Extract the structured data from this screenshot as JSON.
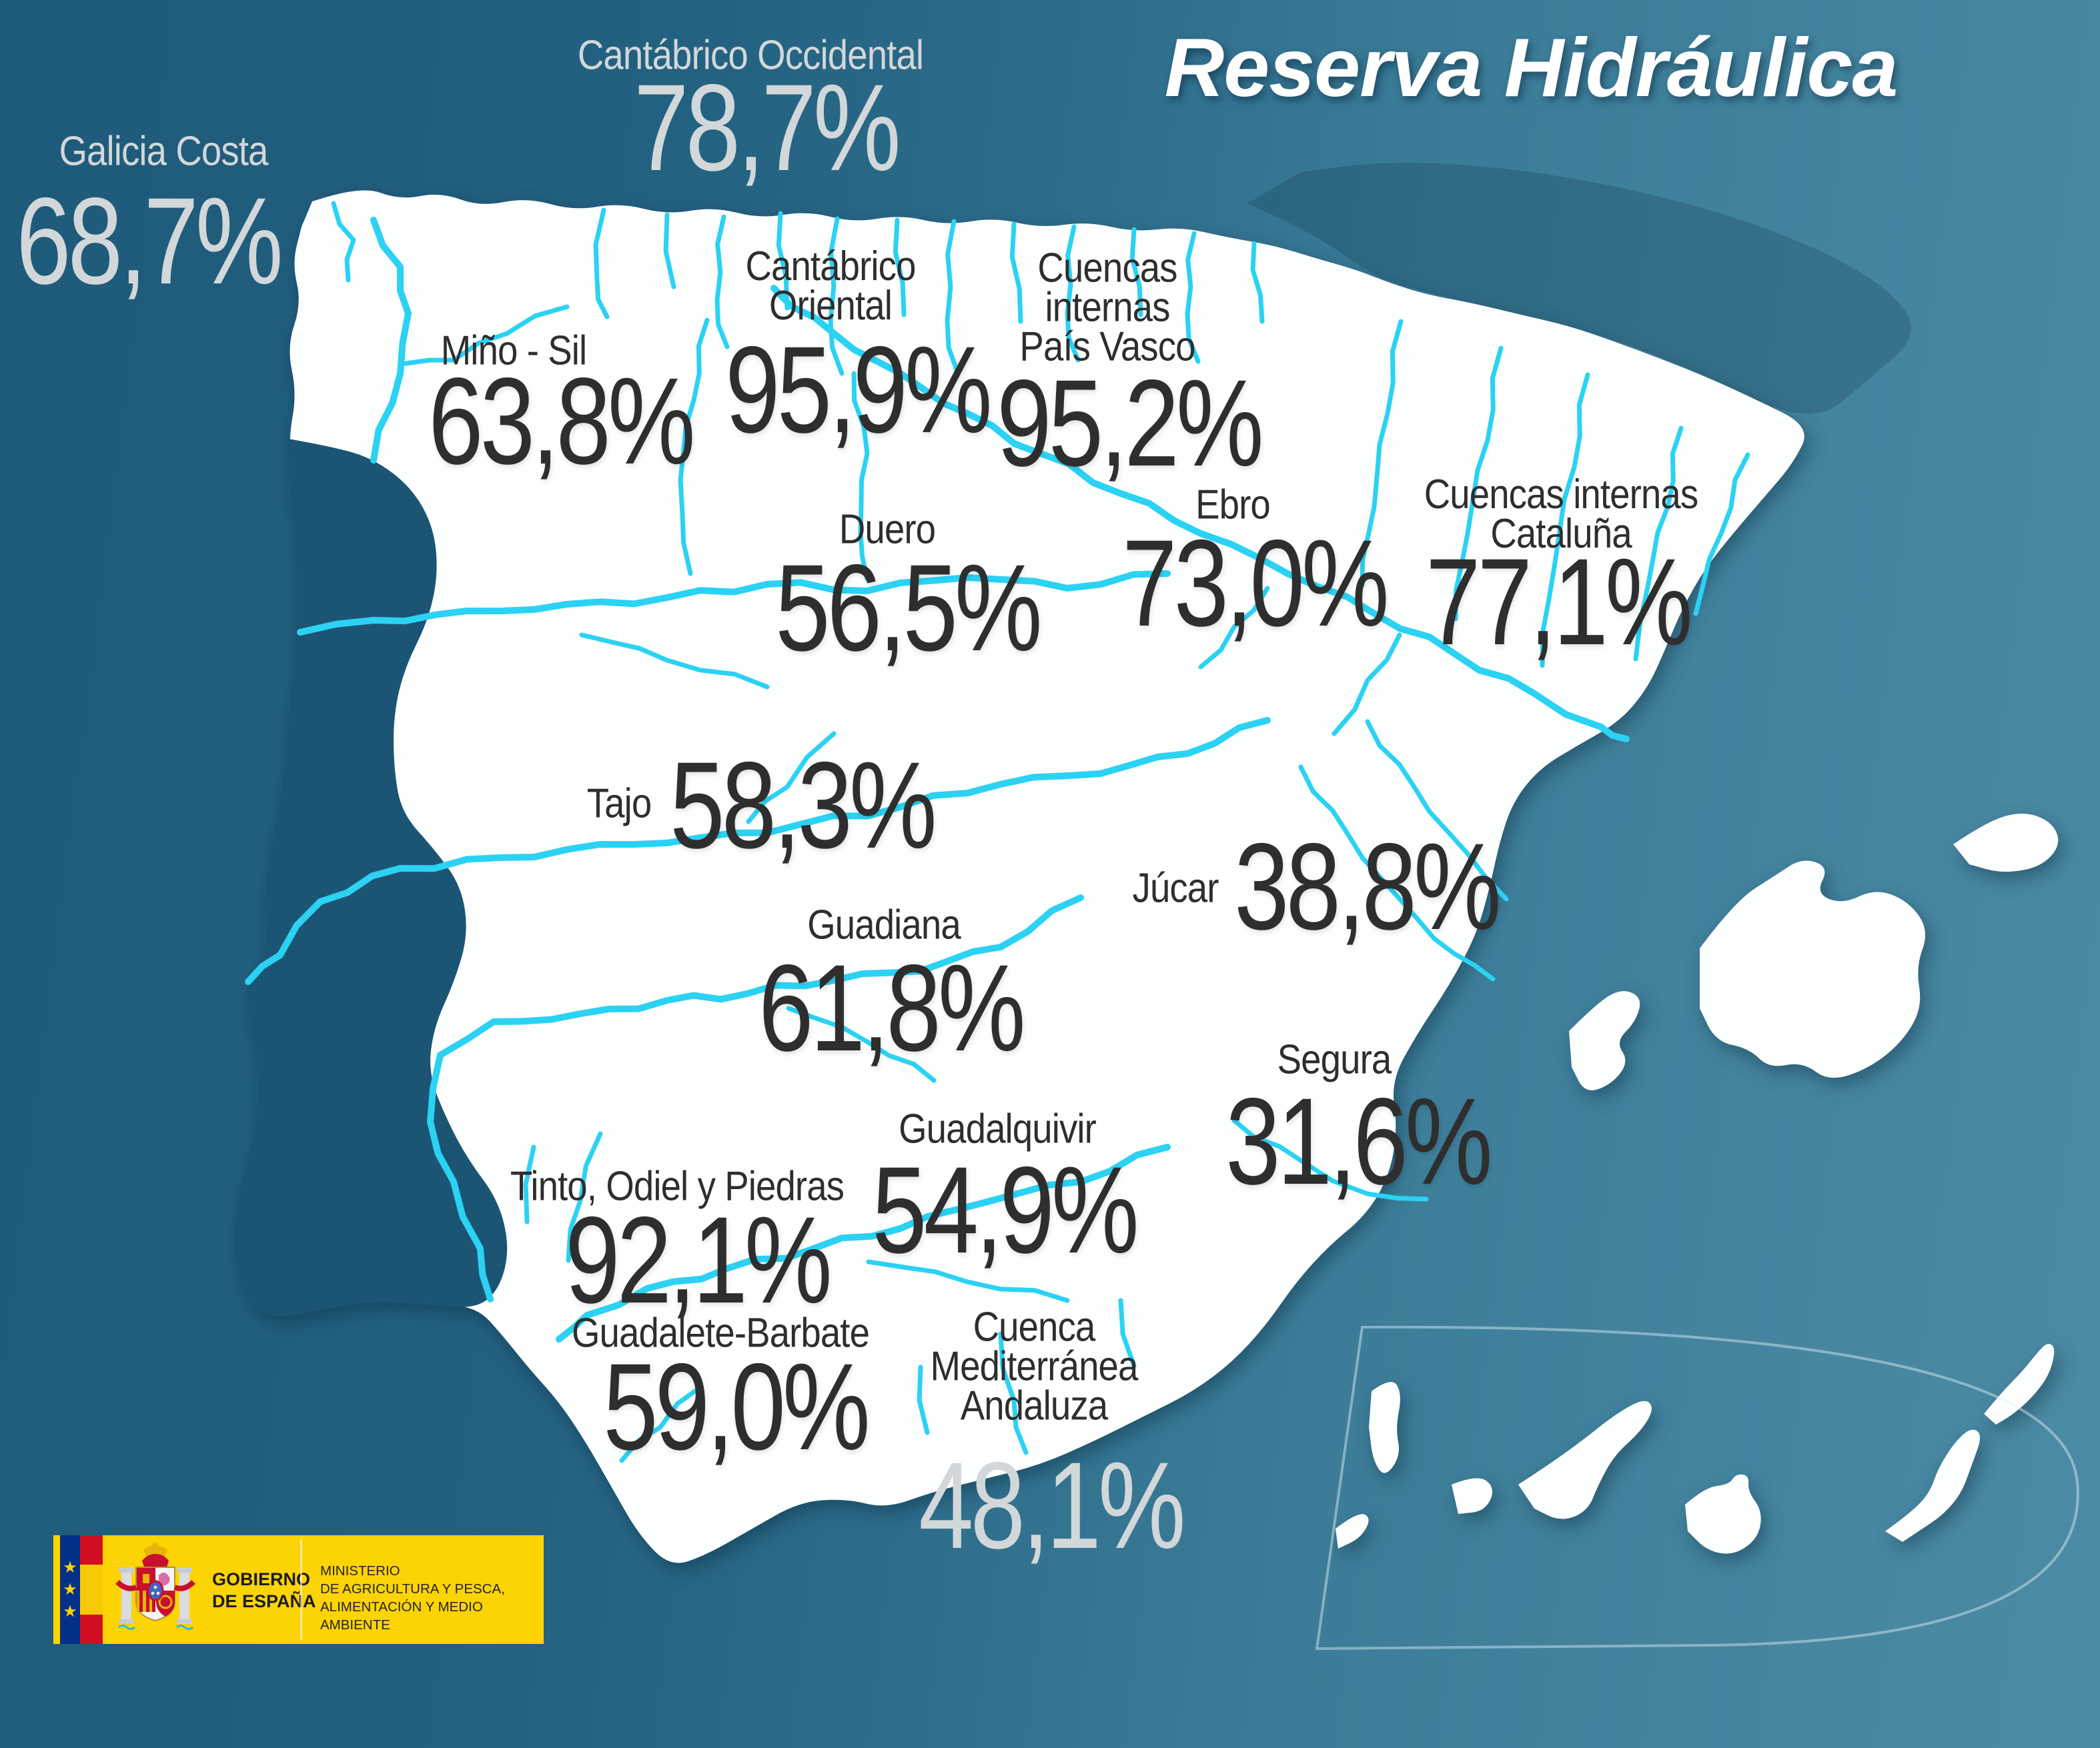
{
  "title": "Reserva Hidráulica",
  "basins": [
    {
      "id": "galicia-costa",
      "name": "Galicia Costa",
      "value": "68,7%"
    },
    {
      "id": "cantabrico-occidental",
      "name": "Cantábrico Occidental",
      "value": "78,7%"
    },
    {
      "id": "cantabrico-oriental",
      "name": "Cantábrico\nOriental",
      "value": "95,9%"
    },
    {
      "id": "cuencas-internas-pais-vasco",
      "name": "Cuencas\ninternas\nPaís Vasco",
      "value": "95,2%"
    },
    {
      "id": "mino-sil",
      "name": "Miño - Sil",
      "value": "63,8%"
    },
    {
      "id": "duero",
      "name": "Duero",
      "value": "56,5%"
    },
    {
      "id": "ebro",
      "name": "Ebro",
      "value": "73,0%"
    },
    {
      "id": "cuencas-internas-cataluna",
      "name": "Cuencas internas\nCataluña",
      "value": "77,1%"
    },
    {
      "id": "tajo",
      "name": "Tajo",
      "value": "58,3%"
    },
    {
      "id": "jucar",
      "name": "Júcar",
      "value": "38,8%"
    },
    {
      "id": "guadiana",
      "name": "Guadiana",
      "value": "61,8%"
    },
    {
      "id": "segura",
      "name": "Segura",
      "value": "31,6%"
    },
    {
      "id": "guadalquivir",
      "name": "Guadalquivir",
      "value": "54,9%"
    },
    {
      "id": "tinto-odiel-piedras",
      "name": "Tinto, Odiel y Piedras",
      "value": "92,1%"
    },
    {
      "id": "guadalete-barbate",
      "name": "Guadalete-Barbate",
      "value": "59,0%"
    },
    {
      "id": "cuenca-mediterranea-andaluza",
      "name": "Cuenca\nMediterránea\nAndaluza",
      "value": "48,1%"
    }
  ],
  "logo": {
    "government": "GOBIERNO\nDE ESPAÑA",
    "ministry": "MINISTERIO\nDE AGRICULTURA Y PESCA,\nALIMENTACIÓN Y MEDIO AMBIENTE"
  },
  "colors": {
    "background_left": "#1e5a7a",
    "background_right": "#4c8ba5",
    "land": "#fdfefe",
    "portugal": "#1c5574",
    "river": "#2bd2f3",
    "text_dark": "#2e2e2e",
    "text_light": "#d2d7d9",
    "title": "#ffffff",
    "logo_yellow": "#fcd303",
    "logo_blue": "#04308a",
    "logo_red": "#d20f22"
  }
}
